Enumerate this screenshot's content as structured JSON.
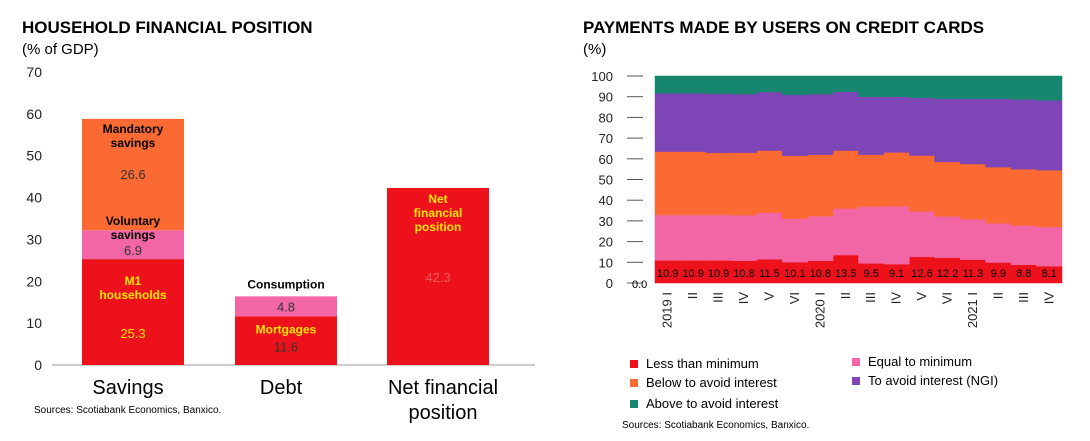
{
  "chart_data": [
    {
      "type": "bar",
      "title": "HOUSEHOLD FINANCIAL POSITION",
      "subtitle": "(% of GDP)",
      "ylim": [
        0,
        70
      ],
      "yticks": [
        "0",
        "10",
        "20",
        "30",
        "40",
        "50",
        "60",
        "70"
      ],
      "categories": [
        "Savings",
        "Debt",
        "Net financial position"
      ],
      "stacks": [
        {
          "category": "Savings",
          "segments": [
            {
              "name": "M1 households",
              "value": 25.3,
              "value_label": "25.3",
              "color": "#ec111a",
              "label_color": "#ffe600",
              "value_color": "#ffe600"
            },
            {
              "name": "Voluntary savings",
              "value": 6.9,
              "value_label": "6.9",
              "color": "#f266a5",
              "label_color": "#000000",
              "value_color": "#333333"
            },
            {
              "name": "Mandatory savings",
              "value": 26.6,
              "value_label": "26.6",
              "color": "#fa6a32",
              "label_color": "#000000",
              "value_color": "#333333"
            }
          ]
        },
        {
          "category": "Debt",
          "segments": [
            {
              "name": "Mortgages",
              "value": 11.6,
              "value_label": "11.6",
              "color": "#ec111a",
              "label_color": "#ffe600",
              "value_color": "#333333"
            },
            {
              "name": "Consumption",
              "value": 4.8,
              "value_label": "4.8",
              "color": "#f266a5",
              "label_color": "#000000",
              "value_color": "#333333"
            }
          ]
        },
        {
          "category": "Net financial position",
          "segments": [
            {
              "name": "Net financial position",
              "value": 42.3,
              "value_label": "42.3",
              "color": "#ec111a",
              "label_color": "#ffe600",
              "value_color": "#f05a5a"
            }
          ]
        }
      ],
      "source": "Sources: Scotiabank Economics, Banxico."
    },
    {
      "type": "area",
      "title": "PAYMENTS MADE BY USERS ON CREDIT CARDS",
      "subtitle": "(%)",
      "ylim": [
        0,
        100
      ],
      "yticks": [
        "0",
        "10",
        "20",
        "30",
        "40",
        "50",
        "60",
        "70",
        "80",
        "90",
        "100"
      ],
      "x": [
        "2019 I",
        "II",
        "III",
        "IV",
        "V",
        "VI",
        "2020 I",
        "II",
        "III",
        "IV",
        "V",
        "VI",
        "2021 I",
        "II",
        "III",
        "IV"
      ],
      "x_display": [
        "2019 I",
        "II",
        "III",
        "IV",
        "V",
        "VI",
        "2020 I",
        "II",
        "III",
        "IV",
        "V",
        "VI",
        "2021 I",
        "II",
        "III",
        "IV"
      ],
      "series": [
        {
          "name": "Less than minimum",
          "color": "#ec111a",
          "values": [
            10.9,
            10.9,
            10.9,
            10.8,
            11.5,
            10.1,
            10.8,
            13.5,
            9.5,
            9.1,
            12.6,
            12.2,
            11.3,
            9.9,
            8.8,
            8.1
          ],
          "labels": [
            "10.9",
            "10.9",
            "10.9",
            "10.8",
            "11.5",
            "10.1",
            "10.8",
            "13.5",
            "9.5",
            "9.1",
            "12.6",
            "12.2",
            "11.3",
            "9.9",
            "8.8",
            "8.1"
          ]
        },
        {
          "name": "Equal to minimum",
          "color": "#f266a5",
          "values": [
            22,
            22,
            22,
            22,
            22.5,
            21,
            21.5,
            22.5,
            27.5,
            28,
            22,
            20,
            19.5,
            19,
            19,
            19
          ]
        },
        {
          "name": "Below to avoid interest",
          "color": "#fa6a32",
          "values": [
            30.6,
            30.6,
            30,
            30.2,
            30,
            30.4,
            29.7,
            28,
            25,
            26,
            27,
            26.3,
            26.7,
            27.1,
            27.2,
            27.4
          ]
        },
        {
          "name": "To avoid interest (NGI)",
          "color": "#7d45b5",
          "values": [
            28.2,
            28.2,
            28.6,
            28.3,
            28.3,
            29.4,
            29.3,
            28.4,
            28,
            26.9,
            27.9,
            30.5,
            31.5,
            33,
            33.7,
            33.8
          ]
        },
        {
          "name": "Above to avoid interest",
          "color": "#16866f",
          "values": [
            8.3,
            8.3,
            8.5,
            8.7,
            7.7,
            9.1,
            8.7,
            7.6,
            10,
            10,
            10.5,
            11,
            11,
            11,
            11.3,
            11.7
          ]
        }
      ],
      "extra_label": "0.0",
      "legend": [
        {
          "name": "Less than minimum",
          "color": "#ec111a"
        },
        {
          "name": "Equal to minimum",
          "color": "#f266a5"
        },
        {
          "name": "Below to avoid interest",
          "color": "#fa6a32"
        },
        {
          "name": "To avoid interest (NGI)",
          "color": "#7d45b5"
        },
        {
          "name": "Above to avoid interest",
          "color": "#16866f"
        }
      ],
      "legend_position": "bottom",
      "source": "Sources: Scotiabank Economics, Banxico."
    }
  ]
}
